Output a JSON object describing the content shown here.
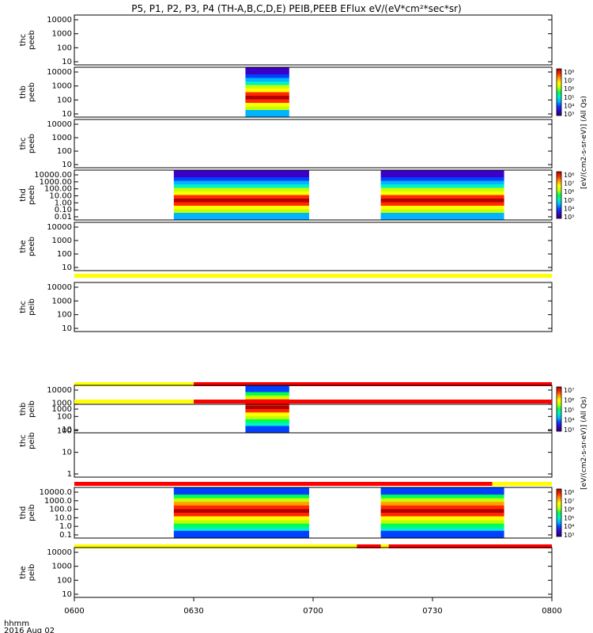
{
  "title": "P5, P1, P2, P3, P4 (TH-A,B,C,D,E) PEIB,PEEB EFlux eV/(eV*cm²*sec*sr)",
  "colors": {
    "flag_yellow": "#ffff00",
    "flag_red": "#ff0000",
    "frame": "#000000",
    "colormap": [
      "#2a0070",
      "#3b00c8",
      "#0040ff",
      "#00b4ff",
      "#00f0c8",
      "#00ff50",
      "#c8ff00",
      "#ffff00",
      "#ffa000",
      "#ff2800",
      "#b00000"
    ]
  },
  "time_axis": {
    "labels": [
      "0600",
      "0630",
      "0700",
      "0730",
      "0800"
    ],
    "hhmm_label": "hhmm",
    "date_label": "2016 Aug 02"
  },
  "colorbar_label_electron": "[eV/(cm2-s-sr-eV)]  (All Qs)",
  "colorbar_label_ion": "[eV/(cm2-s-sr-eV)]  (All Qs)",
  "chart_data": {
    "type": "heatmap",
    "x_range": [
      "06:00",
      "08:00"
    ],
    "panels": [
      {
        "probe": "thc",
        "product": "peeb",
        "ticks": [
          "10",
          "100",
          "1000",
          "10000"
        ],
        "data_intervals": [],
        "colorbar": null,
        "flag_bar": null
      },
      {
        "probe": "thb",
        "product": "peeb",
        "ticks": [
          "10",
          "100",
          "1000",
          "10000"
        ],
        "data_intervals": [
          [
            "06:43",
            "06:54"
          ]
        ],
        "colorbar": [
          "10³",
          "10⁴",
          "10⁵",
          "10⁶",
          "10⁷",
          "10⁸"
        ],
        "flag_bar": null
      },
      {
        "probe": "thc",
        "product": "peeb",
        "ticks": [
          "10",
          "100",
          "1000",
          "10000"
        ],
        "data_intervals": [],
        "colorbar": null,
        "flag_bar": null
      },
      {
        "probe": "thd",
        "product": "peeb",
        "ticks": [
          "0.01",
          "0.10",
          "1.00",
          "10.00",
          "100.00",
          "1000.00",
          "10000.00"
        ],
        "data_intervals": [
          [
            "06:25",
            "06:59"
          ],
          [
            "07:17",
            "07:48"
          ]
        ],
        "colorbar": [
          "10³",
          "10⁴",
          "10⁵",
          "10⁶",
          "10⁷",
          "10⁸"
        ],
        "flag_bar": null
      },
      {
        "probe": "the",
        "product": "peeb",
        "ticks": [
          "10",
          "100",
          "1000",
          "10000"
        ],
        "data_intervals": [],
        "colorbar": null,
        "flag_bar": [
          [
            "06:00",
            "08:00",
            "yellow"
          ]
        ]
      },
      {
        "probe": "thc",
        "product": "peib",
        "ticks": [
          "10",
          "100",
          "1000",
          "10000"
        ],
        "data_intervals": [],
        "colorbar": null,
        "flag_bar": [
          [
            "06:00",
            "06:30",
            "yellow"
          ],
          [
            "06:30",
            "08:00",
            "red"
          ]
        ]
      },
      {
        "probe": "thb",
        "product": "peib",
        "ticks": [
          "10",
          "100",
          "1000",
          "10000"
        ],
        "data_intervals": [
          [
            "06:43",
            "06:54"
          ]
        ],
        "colorbar": [
          "10³",
          "10⁴",
          "10⁵",
          "10⁶",
          "10⁷"
        ],
        "flag_bar": [
          [
            "06:00",
            "06:30",
            "yellow"
          ],
          [
            "06:30",
            "08:00",
            "red"
          ]
        ]
      },
      {
        "probe": "thc",
        "product": "peib",
        "ticks": [
          "1",
          "10",
          "100",
          "1000"
        ],
        "data_intervals": [],
        "colorbar": null,
        "flag_bar": [
          [
            "06:00",
            "07:45",
            "red"
          ],
          [
            "07:45",
            "08:00",
            "yellow"
          ]
        ]
      },
      {
        "probe": "thd",
        "product": "peib",
        "ticks": [
          "0.1",
          "1.0",
          "10.0",
          "100.0",
          "1000.0",
          "10000.0"
        ],
        "data_intervals": [
          [
            "06:25",
            "06:59"
          ],
          [
            "07:17",
            "07:48"
          ]
        ],
        "colorbar": [
          "10³",
          "10⁴",
          "10⁵",
          "10⁶",
          "10⁷",
          "10⁸"
        ],
        "flag_bar": [
          [
            "06:00",
            "07:11",
            "yellow"
          ],
          [
            "07:11",
            "07:17",
            "red"
          ],
          [
            "07:17",
            "07:19",
            "yellow"
          ],
          [
            "07:19",
            "08:00",
            "red"
          ]
        ]
      },
      {
        "probe": "the",
        "product": "peib",
        "ticks": [
          "10",
          "100",
          "1000",
          "10000"
        ],
        "data_intervals": [],
        "colorbar": null,
        "flag_bar": null
      }
    ]
  }
}
